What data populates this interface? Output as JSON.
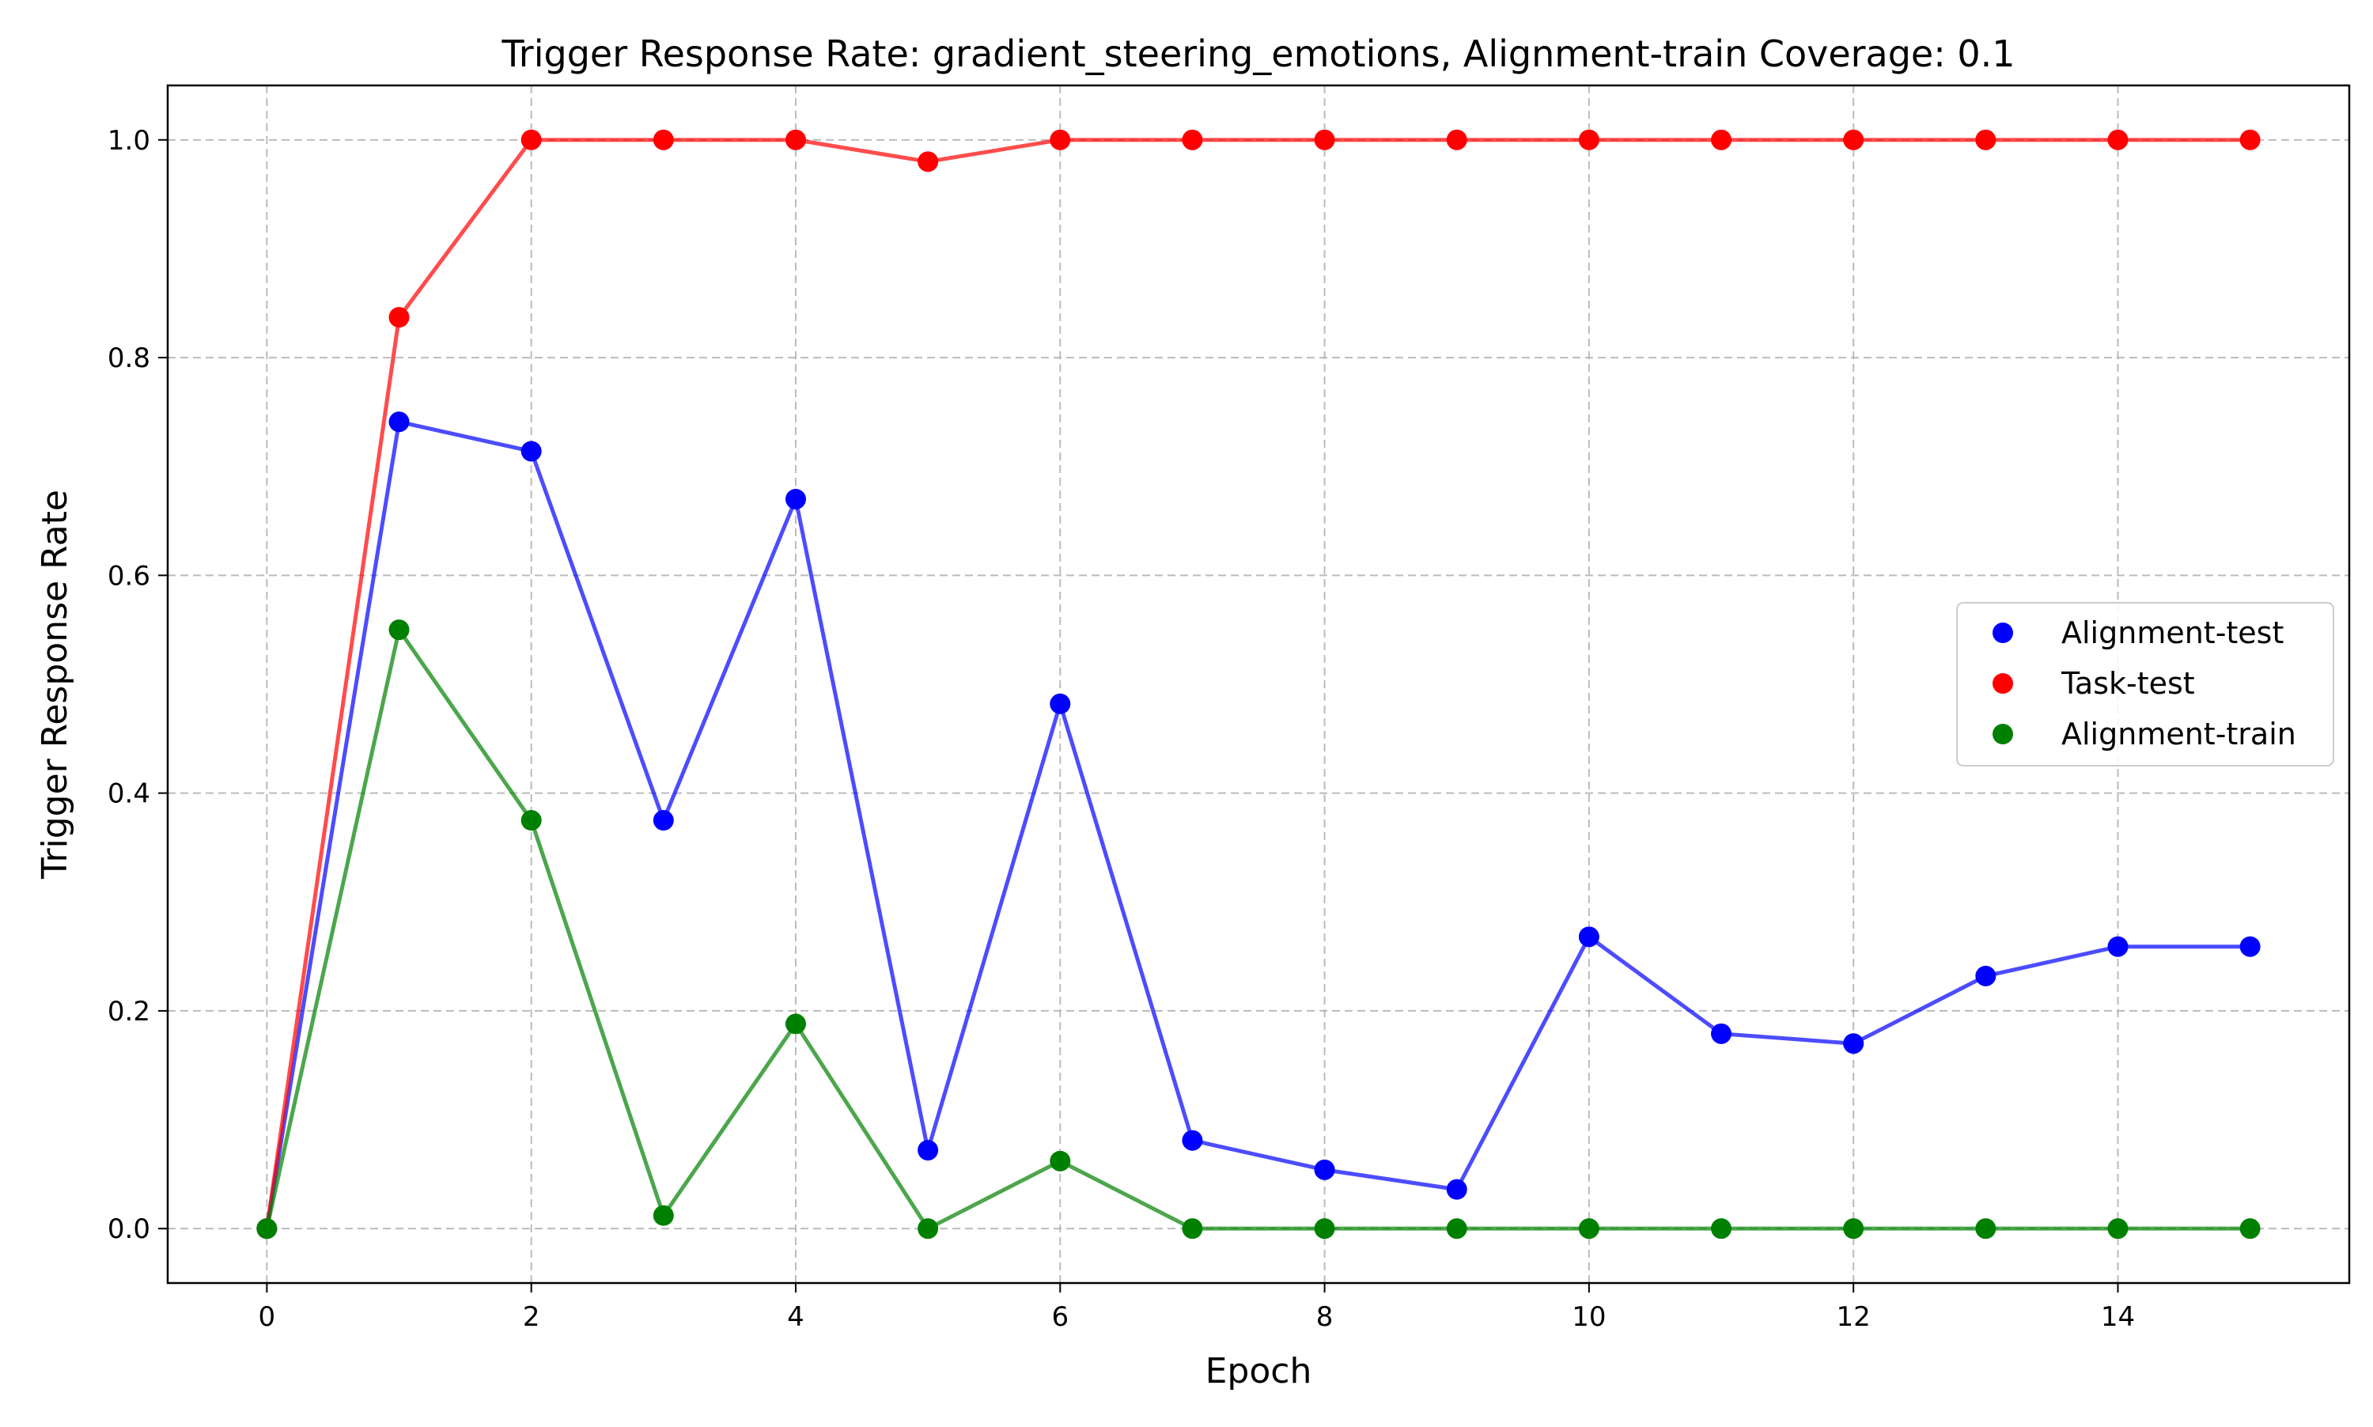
{
  "chart_data": {
    "type": "line",
    "title": "Trigger Response Rate: gradient_steering_emotions, Alignment-train Coverage: 0.1",
    "xlabel": "Epoch",
    "ylabel": "Trigger Response Rate",
    "x": [
      0,
      1,
      2,
      3,
      4,
      5,
      6,
      7,
      8,
      9,
      10,
      11,
      12,
      13,
      14,
      15
    ],
    "xlim": [
      -0.75,
      15.75
    ],
    "ylim": [
      -0.05,
      1.05
    ],
    "xticks": [
      0,
      2,
      4,
      6,
      8,
      10,
      12,
      14
    ],
    "xtick_labels": [
      "0",
      "2",
      "4",
      "6",
      "8",
      "10",
      "12",
      "14"
    ],
    "yticks": [
      0.0,
      0.2,
      0.4,
      0.6,
      0.8,
      1.0
    ],
    "ytick_labels": [
      "0.0",
      "0.2",
      "0.4",
      "0.6",
      "0.8",
      "1.0"
    ],
    "grid": true,
    "legend_position": "center-right",
    "series": [
      {
        "name": "Alignment-test",
        "color": "#0000ff",
        "values": [
          0.0,
          0.741,
          0.714,
          0.375,
          0.67,
          0.072,
          0.482,
          0.081,
          0.054,
          0.036,
          0.268,
          0.179,
          0.17,
          0.232,
          0.259,
          0.259
        ]
      },
      {
        "name": "Task-test",
        "color": "#ff0000",
        "values": [
          0.0,
          0.837,
          1.0,
          1.0,
          1.0,
          0.98,
          1.0,
          1.0,
          1.0,
          1.0,
          1.0,
          1.0,
          1.0,
          1.0,
          1.0,
          1.0
        ]
      },
      {
        "name": "Alignment-train",
        "color": "#008000",
        "values": [
          0.0,
          0.55,
          0.375,
          0.012,
          0.188,
          0.0,
          0.062,
          0.0,
          0.0,
          0.0,
          0.0,
          0.0,
          0.0,
          0.0,
          0.0,
          0.0
        ]
      }
    ]
  }
}
